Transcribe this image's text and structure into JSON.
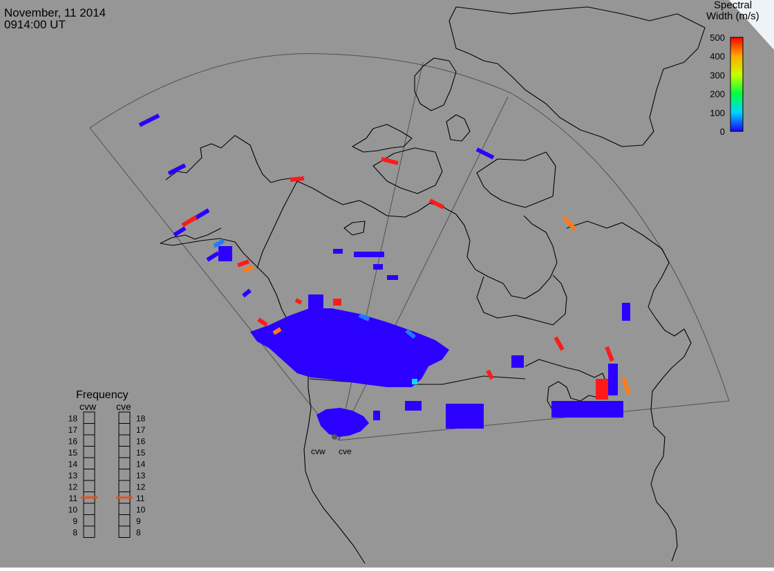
{
  "header": {
    "date": "November, 11 2014",
    "time": "0914:00 UT"
  },
  "colors": {
    "background": "#969696",
    "frame": "#505050",
    "coast": "#000000",
    "low": "#2b00ff",
    "mid_low": "#1e7bff",
    "cyan": "#00e0ff",
    "orange": "#ff7a1a",
    "high": "#ff1a1a"
  },
  "colorbar": {
    "title_line1": "Spectral",
    "title_line2": "Width (m/s)",
    "ticks": [
      "500",
      "400",
      "300",
      "200",
      "100",
      "0"
    ]
  },
  "frequency_panel": {
    "title": "Frequency",
    "radars": [
      "cvw",
      "cve"
    ],
    "scale": [
      "18",
      "17",
      "16",
      "15",
      "14",
      "13",
      "12",
      "11",
      "10",
      "9",
      "8"
    ],
    "selected": {
      "cvw": 11,
      "cve": 11
    },
    "marker_color": "#e8501a"
  },
  "sites": {
    "cvw_label": "cvw",
    "cve_label": "cve"
  }
}
